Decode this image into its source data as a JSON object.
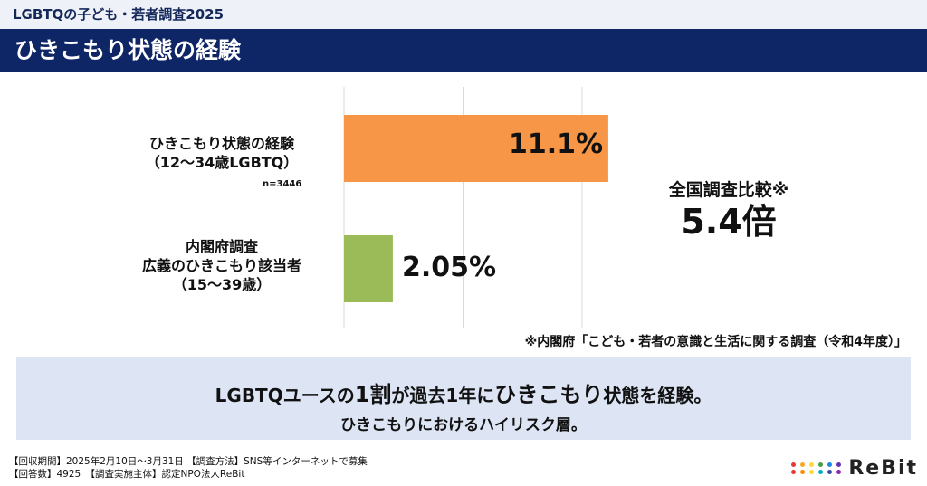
{
  "header": {
    "series": "LGBTQの子ども・若者調査2025",
    "title": "ひきこもり状態の経験"
  },
  "chart_data": {
    "type": "bar",
    "orientation": "horizontal",
    "categories": [
      {
        "lines": [
          "ひきこもり状態の経験",
          "（12〜34歳LGBTQ）"
        ],
        "n": "n=3446"
      },
      {
        "lines": [
          "内閣府調査",
          "広義のひきこもり該当者",
          "（15〜39歳）"
        ]
      }
    ],
    "values": [
      11.1,
      2.05
    ],
    "value_labels": [
      "11.1%",
      "2.05%"
    ],
    "colors": [
      "#f79646",
      "#9bbb59"
    ],
    "xlim": [
      0,
      15
    ],
    "grid": true,
    "grid_step": 5
  },
  "comparison": {
    "label": "全国調査比較※",
    "value": "5.4倍"
  },
  "note": "※内閣府「こども・若者の意識と生活に関する調査（令和4年度）」",
  "summary": {
    "pre": "LGBTQユースの",
    "big1": "1割",
    "mid": "が過去1年に",
    "big2": "ひきこもり",
    "post": "状態を経験。",
    "line2": "ひきこもりにおけるハイリスク層。"
  },
  "footer": {
    "line1": "【回収期間】2025年2月10日〜3月31日 【調査方法】SNS等インターネットで募集",
    "line2": "【回答数】4925　【調査実施主体】認定NPO法人ReBit"
  },
  "logo": {
    "text": "ReBit",
    "dot_colors": [
      "#e53935",
      "#f9a825",
      "#fdd835",
      "#43a047",
      "#1e88e5",
      "#5e35b1",
      "#e53935",
      "#fb8c00",
      "#fdd835",
      "#00acc1",
      "#3949ab",
      "#8e24aa"
    ]
  }
}
